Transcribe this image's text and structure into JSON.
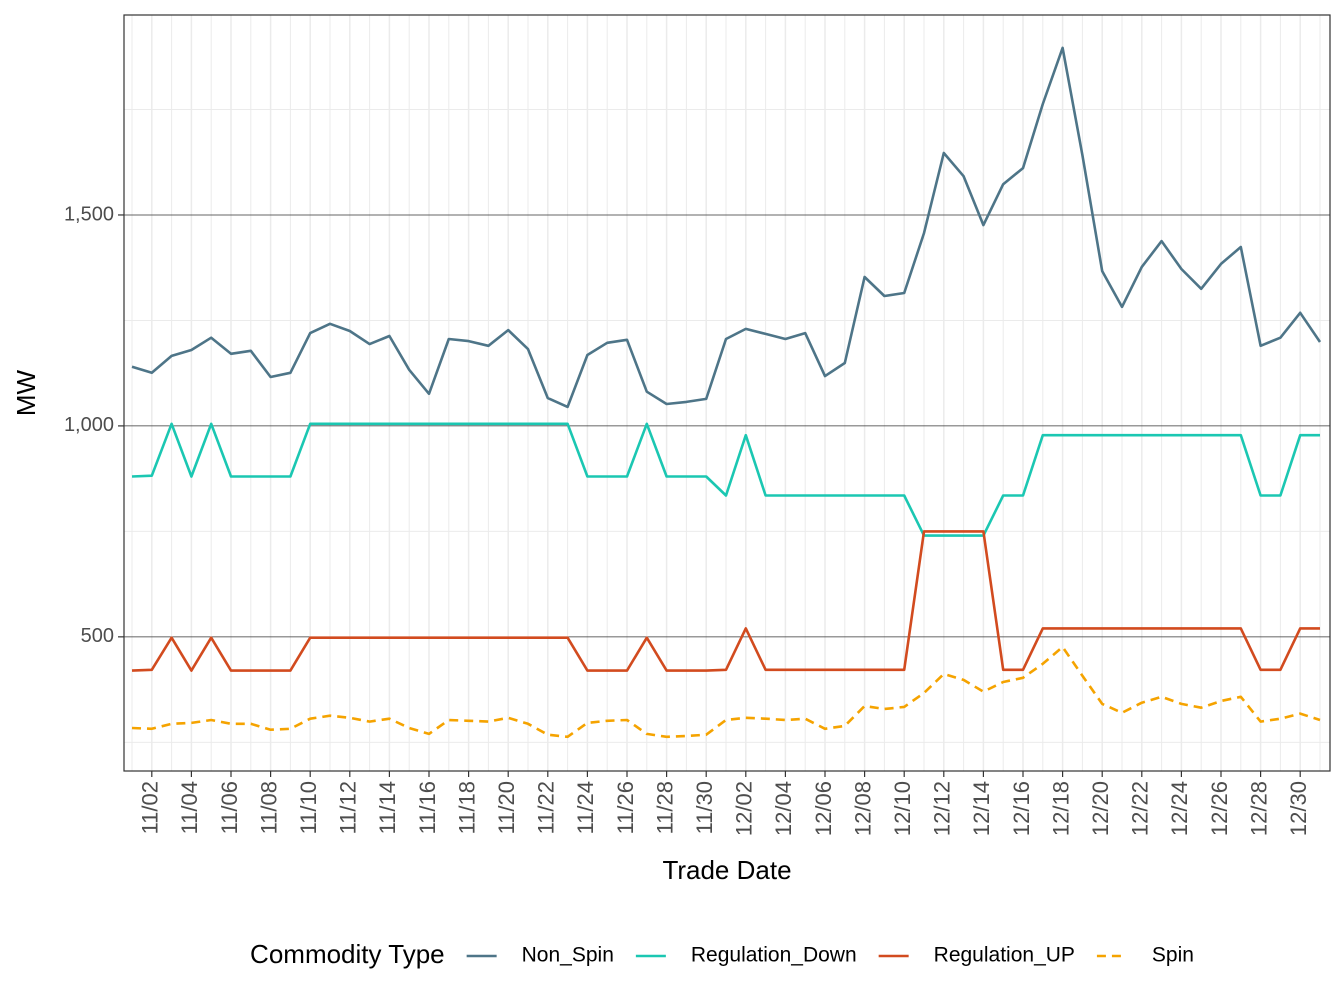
{
  "chart_data": {
    "type": "line",
    "x_label": "Trade Date",
    "y_label": "MW",
    "legend_title": "Commodity Type",
    "legend_position": "bottom",
    "categories": [
      null,
      "11/02",
      null,
      "11/04",
      null,
      "11/06",
      null,
      "11/08",
      null,
      "11/10",
      null,
      "11/12",
      null,
      "11/14",
      null,
      "11/16",
      null,
      "11/18",
      null,
      "11/20",
      null,
      "11/22",
      null,
      "11/24",
      null,
      "11/26",
      null,
      "11/28",
      null,
      "11/30",
      null,
      "12/02",
      null,
      "12/04",
      null,
      "12/06",
      null,
      "12/08",
      null,
      "12/10",
      null,
      "12/12",
      null,
      "12/14",
      null,
      "12/16",
      null,
      "12/18",
      null,
      "12/20",
      null,
      "12/22",
      null,
      "12/24",
      null,
      "12/26",
      null,
      "12/28",
      null,
      "12/30",
      null
    ],
    "ylim": [
      182,
      1974
    ],
    "yticks": [
      500,
      {
        "value": 1000,
        "label": "1,000"
      },
      {
        "value": 1500,
        "label": "1,500"
      }
    ],
    "grid": true,
    "series": [
      {
        "name": "Non_Spin",
        "color": "#4e7588",
        "linestyle": "solid",
        "values": [
          1140,
          1126,
          1166,
          1180,
          1209,
          1171,
          1178,
          1116,
          1126,
          1220,
          1242,
          1225,
          1194,
          1213,
          1133,
          1076,
          1206,
          1201,
          1190,
          1227,
          1182,
          1066,
          1045,
          1168,
          1197,
          1204,
          1081,
          1052,
          1057,
          1064,
          1206,
          1230,
          1218,
          1206,
          1220,
          1118,
          1149,
          1353,
          1308,
          1315,
          1457,
          1647,
          1592,
          1476,
          1573,
          1611,
          1763,
          1896,
          1642,
          1367,
          1282,
          1377,
          1438,
          1372,
          1325,
          1384,
          1424,
          1190,
          1209,
          1268,
          1199
        ]
      },
      {
        "name": "Regulation_Down",
        "color": "#1bc7b2",
        "linestyle": "solid",
        "values": [
          880,
          882,
          1005,
          880,
          1005,
          880,
          880,
          880,
          880,
          1005,
          1005,
          1005,
          1005,
          1005,
          1005,
          1005,
          1005,
          1005,
          1005,
          1005,
          1005,
          1005,
          1005,
          880,
          880,
          880,
          1005,
          880,
          880,
          880,
          835,
          978,
          835,
          835,
          835,
          835,
          835,
          835,
          835,
          835,
          740,
          740,
          740,
          740,
          835,
          835,
          978,
          978,
          978,
          978,
          978,
          978,
          978,
          978,
          978,
          978,
          978,
          835,
          835,
          978,
          978
        ]
      },
      {
        "name": "Regulation_UP",
        "color": "#d24b1f",
        "linestyle": "solid",
        "values": [
          420,
          422,
          498,
          420,
          498,
          420,
          420,
          420,
          420,
          498,
          498,
          498,
          498,
          498,
          498,
          498,
          498,
          498,
          498,
          498,
          498,
          498,
          498,
          420,
          420,
          420,
          498,
          420,
          420,
          420,
          422,
          520,
          422,
          422,
          422,
          422,
          422,
          422,
          422,
          422,
          750,
          750,
          750,
          750,
          422,
          422,
          520,
          520,
          520,
          520,
          520,
          520,
          520,
          520,
          520,
          520,
          520,
          422,
          422,
          520,
          520
        ]
      },
      {
        "name": "Spin",
        "color": "#f5a300",
        "linestyle": "dashed",
        "values": [
          284,
          282,
          294,
          296,
          303,
          294,
          294,
          280,
          282,
          306,
          313,
          308,
          299,
          306,
          284,
          270,
          303,
          301,
          299,
          308,
          294,
          268,
          263,
          296,
          301,
          303,
          270,
          263,
          265,
          268,
          303,
          308,
          306,
          303,
          306,
          282,
          289,
          336,
          329,
          334,
          367,
          412,
          398,
          370,
          393,
          403,
          436,
          476,
          408,
          341,
          320,
          344,
          358,
          341,
          332,
          348,
          358,
          299,
          306,
          318,
          303
        ]
      }
    ]
  }
}
